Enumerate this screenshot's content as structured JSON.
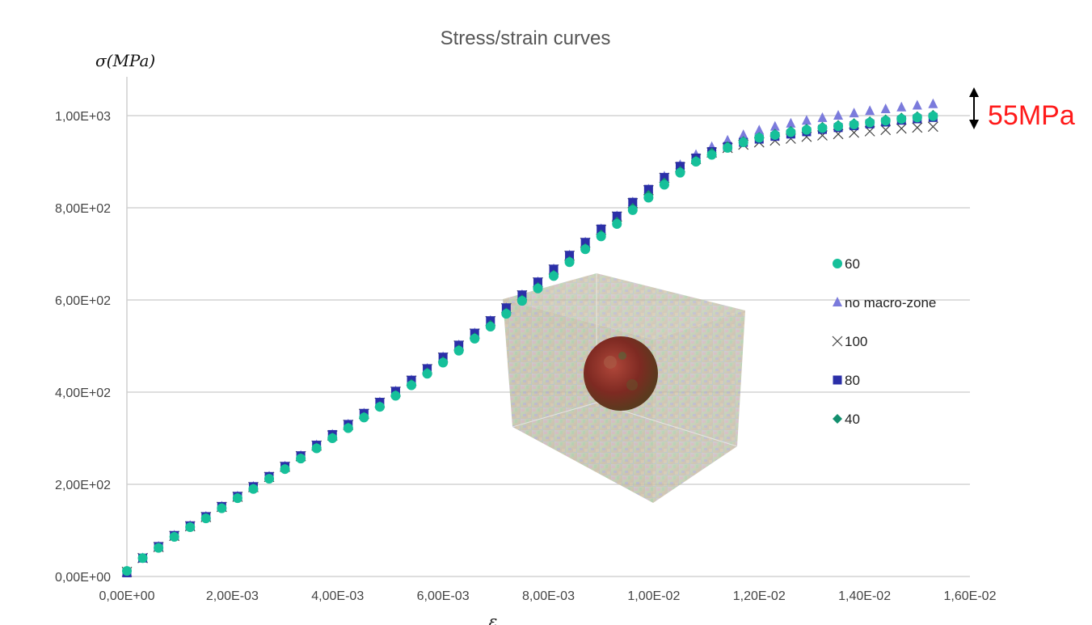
{
  "chart_data": {
    "type": "scatter",
    "title": "Stress/strain curves",
    "ylabel": "σ(MPa)",
    "xlabel": "ε",
    "xlim": [
      0,
      0.016
    ],
    "ylim": [
      0,
      1000
    ],
    "grid": "horizontal",
    "x_tick_labels": [
      "0,00E+00",
      "2,00E-03",
      "4,00E-03",
      "6,00E-03",
      "8,00E-03",
      "1,00E-02",
      "1,20E-02",
      "1,40E-02",
      "1,60E-02"
    ],
    "y_tick_labels": [
      "0,00E+00",
      "2,00E+02",
      "4,00E+02",
      "6,00E+02",
      "8,00E+02",
      "1,00E+03"
    ],
    "legend_position": "right",
    "annotation": "55MPa",
    "series": [
      {
        "name": "60",
        "marker": "circle",
        "color": "#16c09a",
        "x": [
          0.0,
          0.0003,
          0.0006,
          0.0009,
          0.0012,
          0.0015,
          0.0018,
          0.0021,
          0.0024,
          0.0027,
          0.003,
          0.0033,
          0.0036,
          0.0039,
          0.0042,
          0.0045,
          0.0048,
          0.0051,
          0.0054,
          0.0057,
          0.006,
          0.0063,
          0.0066,
          0.0069,
          0.0072,
          0.0075,
          0.0078,
          0.0081,
          0.0084,
          0.0087,
          0.009,
          0.0093,
          0.0096,
          0.0099,
          0.0102,
          0.0105,
          0.0108,
          0.0111,
          0.0114,
          0.0117,
          0.012,
          0.0123,
          0.0126,
          0.0129,
          0.0132,
          0.0135,
          0.0138,
          0.0141,
          0.0144,
          0.0147,
          0.015,
          0.0153
        ],
        "y": [
          12,
          40,
          62,
          86,
          107,
          126,
          148,
          170,
          190,
          212,
          233,
          256,
          278,
          300,
          322,
          345,
          368,
          392,
          415,
          440,
          464,
          490,
          516,
          542,
          570,
          598,
          625,
          652,
          682,
          710,
          738,
          765,
          795,
          822,
          850,
          876,
          900,
          915,
          930,
          942,
          952,
          958,
          964,
          969,
          973,
          977,
          981,
          985,
          989,
          993,
          996,
          999
        ]
      },
      {
        "name": "no macro-zone",
        "marker": "triangle",
        "color": "#7b7bdc",
        "x": [
          0.0,
          0.0003,
          0.0006,
          0.0009,
          0.0012,
          0.0015,
          0.0018,
          0.0021,
          0.0024,
          0.0027,
          0.003,
          0.0033,
          0.0036,
          0.0039,
          0.0042,
          0.0045,
          0.0048,
          0.0051,
          0.0054,
          0.0057,
          0.006,
          0.0063,
          0.0066,
          0.0069,
          0.0072,
          0.0075,
          0.0078,
          0.0081,
          0.0084,
          0.0087,
          0.009,
          0.0093,
          0.0096,
          0.0099,
          0.0102,
          0.0105,
          0.0108,
          0.0111,
          0.0114,
          0.0117,
          0.012,
          0.0123,
          0.0126,
          0.0129,
          0.0132,
          0.0135,
          0.0138,
          0.0141,
          0.0144,
          0.0147,
          0.015,
          0.0153
        ],
        "y": [
          10,
          40,
          65,
          89,
          110,
          130,
          152,
          174,
          195,
          217,
          239,
          262,
          285,
          308,
          330,
          354,
          378,
          402,
          426,
          451,
          476,
          502,
          528,
          555,
          583,
          611,
          639,
          667,
          697,
          725,
          754,
          782,
          812,
          840,
          868,
          893,
          915,
          932,
          946,
          958,
          968,
          976,
          983,
          989,
          995,
          1000,
          1005,
          1010,
          1014,
          1018,
          1022,
          1025
        ]
      },
      {
        "name": "100",
        "marker": "x",
        "color": "#444444",
        "x": [
          0.0,
          0.0003,
          0.0006,
          0.0009,
          0.0012,
          0.0015,
          0.0018,
          0.0021,
          0.0024,
          0.0027,
          0.003,
          0.0033,
          0.0036,
          0.0039,
          0.0042,
          0.0045,
          0.0048,
          0.0051,
          0.0054,
          0.0057,
          0.006,
          0.0063,
          0.0066,
          0.0069,
          0.0072,
          0.0075,
          0.0078,
          0.0081,
          0.0084,
          0.0087,
          0.009,
          0.0093,
          0.0096,
          0.0099,
          0.0102,
          0.0105,
          0.0108,
          0.0111,
          0.0114,
          0.0117,
          0.012,
          0.0123,
          0.0126,
          0.0129,
          0.0132,
          0.0135,
          0.0138,
          0.0141,
          0.0144,
          0.0147,
          0.015,
          0.0153
        ],
        "y": [
          10,
          40,
          64,
          88,
          109,
          129,
          151,
          173,
          194,
          216,
          238,
          261,
          284,
          306,
          329,
          353,
          377,
          401,
          425,
          450,
          475,
          501,
          527,
          554,
          582,
          610,
          638,
          666,
          696,
          724,
          752,
          781,
          810,
          838,
          865,
          888,
          906,
          920,
          930,
          937,
          942,
          946,
          950,
          954,
          957,
          960,
          963,
          966,
          969,
          972,
          974,
          976
        ]
      },
      {
        "name": "80",
        "marker": "square",
        "color": "#2b2fa8",
        "x": [
          0.0,
          0.0003,
          0.0006,
          0.0009,
          0.0012,
          0.0015,
          0.0018,
          0.0021,
          0.0024,
          0.0027,
          0.003,
          0.0033,
          0.0036,
          0.0039,
          0.0042,
          0.0045,
          0.0048,
          0.0051,
          0.0054,
          0.0057,
          0.006,
          0.0063,
          0.0066,
          0.0069,
          0.0072,
          0.0075,
          0.0078,
          0.0081,
          0.0084,
          0.0087,
          0.009,
          0.0093,
          0.0096,
          0.0099,
          0.0102,
          0.0105,
          0.0108,
          0.0111,
          0.0114,
          0.0117,
          0.012,
          0.0123,
          0.0126,
          0.0129,
          0.0132,
          0.0135,
          0.0138,
          0.0141,
          0.0144,
          0.0147,
          0.015,
          0.0153
        ],
        "y": [
          8,
          40,
          65,
          89,
          110,
          130,
          152,
          174,
          195,
          217,
          239,
          262,
          285,
          308,
          330,
          354,
          378,
          402,
          426,
          451,
          476,
          502,
          528,
          555,
          583,
          611,
          639,
          667,
          697,
          725,
          754,
          782,
          812,
          840,
          866,
          890,
          908,
          922,
          933,
          942,
          949,
          955,
          960,
          965,
          970,
          974,
          978,
          982,
          986,
          990,
          993,
          996
        ]
      },
      {
        "name": "40",
        "marker": "diamond",
        "color": "#138f6e",
        "x": [
          0.0,
          0.0003,
          0.0006,
          0.0009,
          0.0012,
          0.0015,
          0.0018,
          0.0021,
          0.0024,
          0.0027,
          0.003,
          0.0033,
          0.0036,
          0.0039,
          0.0042,
          0.0045,
          0.0048,
          0.0051,
          0.0054,
          0.0057,
          0.006,
          0.0063,
          0.0066,
          0.0069,
          0.0072,
          0.0075,
          0.0078,
          0.0081,
          0.0084,
          0.0087,
          0.009,
          0.0093,
          0.0096,
          0.0099,
          0.0102,
          0.0105,
          0.0108,
          0.0111,
          0.0114,
          0.0117,
          0.012,
          0.0123,
          0.0126,
          0.0129,
          0.0132,
          0.0135,
          0.0138,
          0.0141,
          0.0144,
          0.0147,
          0.015,
          0.0153
        ],
        "y": [
          12,
          40,
          63,
          87,
          108,
          127,
          149,
          171,
          191,
          213,
          234,
          257,
          280,
          302,
          324,
          347,
          370,
          394,
          418,
          443,
          467,
          493,
          519,
          546,
          573,
          601,
          628,
          655,
          685,
          713,
          742,
          770,
          800,
          828,
          855,
          880,
          903,
          920,
          934,
          945,
          954,
          961,
          967,
          972,
          976,
          980,
          984,
          988,
          992,
          996,
          999,
          1002
        ]
      }
    ]
  }
}
